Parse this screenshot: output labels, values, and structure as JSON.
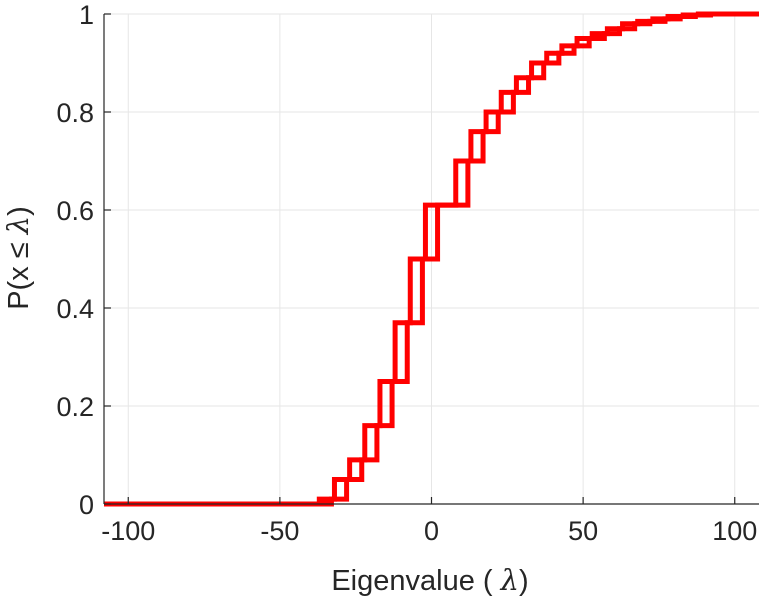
{
  "chart_data": {
    "type": "line",
    "subtype": "stairs",
    "title": "",
    "xlabel": "Eigenvalue (  λ)",
    "ylabel": "P(x ≤ λ)",
    "xlim": [
      -108,
      108
    ],
    "ylim": [
      0,
      1
    ],
    "grid": true,
    "x_ticks": [
      -100,
      -50,
      0,
      50,
      100
    ],
    "y_ticks": [
      0,
      0.2,
      0.4,
      0.6,
      0.8,
      1
    ],
    "x_tick_labels": [
      "-100",
      "-50",
      "0",
      "50",
      "100"
    ],
    "y_tick_labels": [
      "0",
      "0.2",
      "0.4",
      "0.6",
      "0.8",
      "1"
    ],
    "series": [
      {
        "name": "series-1",
        "color": "#ff0000",
        "x": [
          -108,
          -37,
          -32,
          -27,
          -22,
          -17,
          -12,
          -7,
          -2,
          8,
          13,
          18,
          23,
          28,
          33,
          38,
          43,
          48,
          53,
          58,
          63,
          68,
          73,
          78,
          83,
          88,
          93,
          108
        ],
        "y": [
          0,
          0.01,
          0.05,
          0.09,
          0.16,
          0.25,
          0.37,
          0.5,
          0.61,
          0.7,
          0.76,
          0.8,
          0.84,
          0.87,
          0.9,
          0.92,
          0.935,
          0.95,
          0.96,
          0.97,
          0.98,
          0.985,
          0.99,
          0.995,
          0.998,
          1.0,
          1.0,
          1.0
        ]
      },
      {
        "name": "series-2",
        "color": "#ff0000",
        "x": [
          -108,
          -33,
          -28,
          -23,
          -18,
          -13,
          -8,
          -3,
          2,
          12,
          17,
          22,
          27,
          32,
          37,
          42,
          47,
          52,
          57,
          62,
          67,
          72,
          77,
          82,
          87,
          92,
          97,
          108
        ],
        "y": [
          0,
          0.01,
          0.05,
          0.09,
          0.16,
          0.25,
          0.37,
          0.5,
          0.61,
          0.7,
          0.76,
          0.8,
          0.84,
          0.87,
          0.9,
          0.92,
          0.935,
          0.95,
          0.96,
          0.97,
          0.98,
          0.985,
          0.99,
          0.995,
          0.998,
          1.0,
          1.0,
          1.0
        ]
      }
    ]
  }
}
